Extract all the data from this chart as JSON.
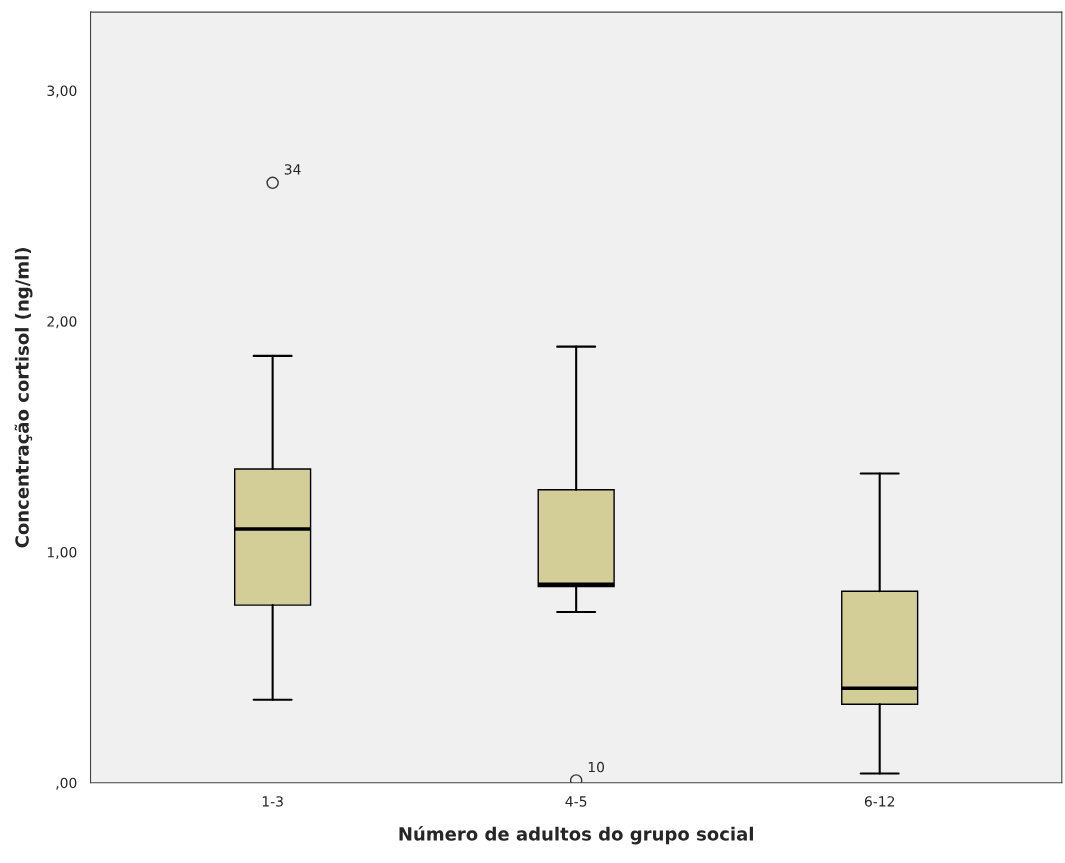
{
  "chart_data": {
    "type": "box",
    "xlabel": "Número de adultos do grupo social",
    "ylabel": "Concentração cortisol (ng/ml)",
    "categories": [
      "1-3",
      "4-5",
      "6-12"
    ],
    "color": "#d3ce98",
    "boxes": [
      {
        "low": 0.36,
        "q1": 0.77,
        "median": 1.1,
        "q3": 1.36,
        "high": 1.85,
        "outliers": [
          2.6
        ]
      },
      {
        "low": 0.74,
        "q1": 0.85,
        "median": 0.86,
        "q3": 1.27,
        "high": 1.89,
        "outliers": [
          0.01
        ]
      },
      {
        "low": 0.04,
        "q1": 0.34,
        "median": 0.41,
        "q3": 0.83,
        "high": 1.34
      }
    ],
    "ylim": [
      0,
      3.34
    ],
    "yticks": [
      {
        "value": 0,
        "label": ",00"
      },
      {
        "value": 1,
        "label": "1,00"
      },
      {
        "value": 2,
        "label": "2,00"
      },
      {
        "value": 3,
        "label": "3,00"
      }
    ],
    "annotations": [
      "34",
      "10"
    ],
    "grid": false
  }
}
